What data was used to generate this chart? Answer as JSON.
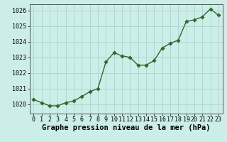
{
  "x": [
    0,
    1,
    2,
    3,
    4,
    5,
    6,
    7,
    8,
    9,
    10,
    11,
    12,
    13,
    14,
    15,
    16,
    17,
    18,
    19,
    20,
    21,
    22,
    23
  ],
  "y": [
    1020.3,
    1020.1,
    1019.9,
    1019.9,
    1020.1,
    1020.2,
    1020.5,
    1020.8,
    1021.0,
    1022.7,
    1023.3,
    1023.1,
    1023.0,
    1022.5,
    1022.5,
    1022.8,
    1023.6,
    1023.9,
    1024.1,
    1025.3,
    1025.4,
    1025.6,
    1026.1,
    1025.7
  ],
  "line_color": "#2d6a2d",
  "marker_color": "#2d6a2d",
  "bg_color": "#cceee8",
  "grid_color": "#aad4cc",
  "xlabel": "Graphe pression niveau de la mer (hPa)",
  "ylim": [
    1019.4,
    1026.4
  ],
  "xlim": [
    -0.5,
    23.5
  ],
  "yticks": [
    1020,
    1021,
    1022,
    1023,
    1024,
    1025,
    1026
  ],
  "xticks": [
    0,
    1,
    2,
    3,
    4,
    5,
    6,
    7,
    8,
    9,
    10,
    11,
    12,
    13,
    14,
    15,
    16,
    17,
    18,
    19,
    20,
    21,
    22,
    23
  ],
  "xtick_labels": [
    "0",
    "1",
    "2",
    "3",
    "4",
    "5",
    "6",
    "7",
    "8",
    "9",
    "10",
    "11",
    "12",
    "13",
    "14",
    "15",
    "16",
    "17",
    "18",
    "19",
    "20",
    "21",
    "22",
    "23"
  ],
  "xlabel_fontsize": 7.5,
  "tick_fontsize": 6,
  "marker_size": 2.8,
  "line_width": 1.0
}
